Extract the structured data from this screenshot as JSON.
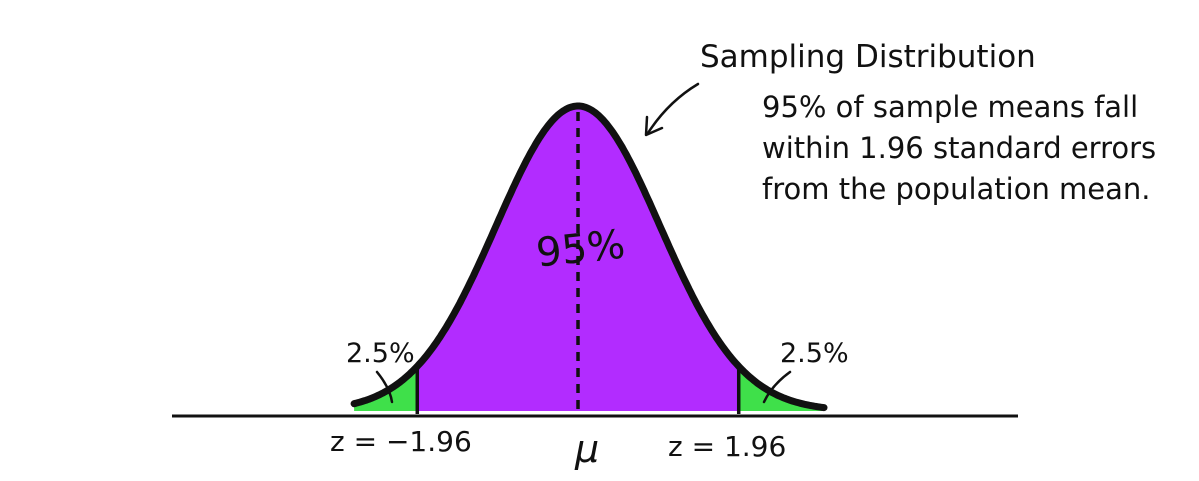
{
  "colors": {
    "center_fill": "#b22cff",
    "tail_fill": "#3fe04a",
    "ink": "#111111",
    "background": "#ffffff"
  },
  "labels": {
    "curve_title": "Sampling Distribution",
    "note_lines": [
      "95% of sample means fall",
      "within 1.96 standard errors",
      "from the population mean."
    ],
    "center_percent": "95%",
    "left_tail_percent": "2.5%",
    "right_tail_percent": "2.5%",
    "left_z": "z = −1.96",
    "mean_symbol": "μ",
    "right_z": "z = 1.96"
  },
  "distribution": {
    "type": "normal",
    "z_critical": 1.96,
    "center_area_percent": 95,
    "tail_area_percent": 2.5
  }
}
